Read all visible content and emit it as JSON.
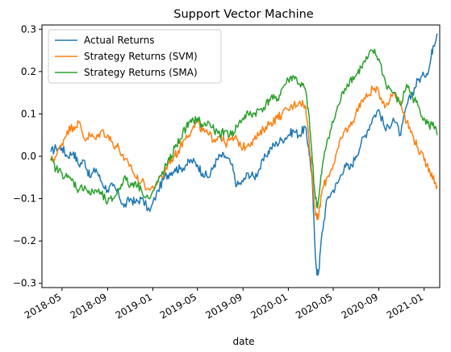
{
  "chart_data": {
    "type": "line",
    "title": "Support Vector Machine",
    "xlabel": "date",
    "ylabel": "",
    "xlim": [
      "2018-03-08",
      "2021-02-12"
    ],
    "ylim": [
      -0.31,
      0.31
    ],
    "x_ticks": [
      "2018-05",
      "2018-09",
      "2019-01",
      "2019-05",
      "2019-09",
      "2020-01",
      "2020-05",
      "2020-09",
      "2021-01"
    ],
    "y_ticks": [
      -0.3,
      -0.2,
      -0.1,
      0.0,
      0.1,
      0.2,
      0.3
    ],
    "y_tick_labels": [
      "−0.3",
      "−0.2",
      "−0.1",
      "0.0",
      "0.1",
      "0.2",
      "0.3"
    ],
    "legend_position": "upper-left",
    "grid": false,
    "series": [
      {
        "name": "Actual Returns",
        "color": "#1f77b4",
        "points": [
          [
            "2018-04-01",
            0.01
          ],
          [
            "2018-04-15",
            0.02
          ],
          [
            "2018-05-01",
            0.02
          ],
          [
            "2018-05-15",
            0.0
          ],
          [
            "2018-06-01",
            0.01
          ],
          [
            "2018-06-15",
            -0.02
          ],
          [
            "2018-07-01",
            -0.01
          ],
          [
            "2018-07-15",
            -0.05
          ],
          [
            "2018-08-01",
            -0.03
          ],
          [
            "2018-08-15",
            -0.06
          ],
          [
            "2018-09-01",
            -0.08
          ],
          [
            "2018-09-15",
            -0.07
          ],
          [
            "2018-10-01",
            -0.09
          ],
          [
            "2018-10-15",
            -0.12
          ],
          [
            "2018-11-01",
            -0.1
          ],
          [
            "2018-11-15",
            -0.11
          ],
          [
            "2018-12-01",
            -0.1
          ],
          [
            "2018-12-24",
            -0.13
          ],
          [
            "2019-01-15",
            -0.08
          ],
          [
            "2019-02-01",
            -0.05
          ],
          [
            "2019-02-15",
            -0.04
          ],
          [
            "2019-03-01",
            -0.03
          ],
          [
            "2019-03-15",
            -0.03
          ],
          [
            "2019-04-01",
            -0.02
          ],
          [
            "2019-04-15",
            -0.01
          ],
          [
            "2019-05-01",
            -0.02
          ],
          [
            "2019-05-15",
            -0.04
          ],
          [
            "2019-06-01",
            -0.05
          ],
          [
            "2019-06-15",
            -0.02
          ],
          [
            "2019-07-01",
            0.0
          ],
          [
            "2019-07-15",
            0.0
          ],
          [
            "2019-08-01",
            -0.02
          ],
          [
            "2019-08-15",
            -0.07
          ],
          [
            "2019-09-01",
            -0.06
          ],
          [
            "2019-09-15",
            -0.04
          ],
          [
            "2019-10-01",
            -0.05
          ],
          [
            "2019-10-15",
            -0.03
          ],
          [
            "2019-11-01",
            0.0
          ],
          [
            "2019-11-15",
            0.02
          ],
          [
            "2019-12-01",
            0.03
          ],
          [
            "2019-12-15",
            0.04
          ],
          [
            "2020-01-01",
            0.05
          ],
          [
            "2020-01-15",
            0.06
          ],
          [
            "2020-02-01",
            0.05
          ],
          [
            "2020-02-15",
            0.07
          ],
          [
            "2020-02-25",
            0.02
          ],
          [
            "2020-03-05",
            -0.05
          ],
          [
            "2020-03-12",
            -0.2
          ],
          [
            "2020-03-18",
            -0.28
          ],
          [
            "2020-03-23",
            -0.27
          ],
          [
            "2020-04-01",
            -0.18
          ],
          [
            "2020-04-15",
            -0.1
          ],
          [
            "2020-05-01",
            -0.08
          ],
          [
            "2020-05-15",
            -0.06
          ],
          [
            "2020-06-01",
            -0.02
          ],
          [
            "2020-06-15",
            -0.03
          ],
          [
            "2020-07-01",
            0.0
          ],
          [
            "2020-07-15",
            0.03
          ],
          [
            "2020-08-01",
            0.06
          ],
          [
            "2020-08-15",
            0.09
          ],
          [
            "2020-09-01",
            0.11
          ],
          [
            "2020-09-20",
            0.06
          ],
          [
            "2020-10-10",
            0.09
          ],
          [
            "2020-10-30",
            0.05
          ],
          [
            "2020-11-15",
            0.12
          ],
          [
            "2020-12-01",
            0.15
          ],
          [
            "2020-12-15",
            0.18
          ],
          [
            "2021-01-01",
            0.19
          ],
          [
            "2021-01-15",
            0.21
          ],
          [
            "2021-01-25",
            0.26
          ],
          [
            "2021-02-05",
            0.29
          ]
        ]
      },
      {
        "name": "Strategy Returns (SVM)",
        "color": "#ff7f0e",
        "points": [
          [
            "2018-04-01",
            -0.01
          ],
          [
            "2018-04-15",
            0.0
          ],
          [
            "2018-05-01",
            0.03
          ],
          [
            "2018-05-15",
            0.06
          ],
          [
            "2018-06-01",
            0.07
          ],
          [
            "2018-06-15",
            0.08
          ],
          [
            "2018-07-01",
            0.04
          ],
          [
            "2018-07-15",
            0.05
          ],
          [
            "2018-08-01",
            0.04
          ],
          [
            "2018-08-15",
            0.06
          ],
          [
            "2018-09-01",
            0.05
          ],
          [
            "2018-09-15",
            0.03
          ],
          [
            "2018-10-01",
            0.02
          ],
          [
            "2018-10-15",
            -0.01
          ],
          [
            "2018-11-01",
            -0.02
          ],
          [
            "2018-11-15",
            -0.05
          ],
          [
            "2018-12-01",
            -0.06
          ],
          [
            "2018-12-24",
            -0.08
          ],
          [
            "2019-01-15",
            -0.06
          ],
          [
            "2019-02-01",
            -0.04
          ],
          [
            "2019-02-15",
            -0.01
          ],
          [
            "2019-03-01",
            0.0
          ],
          [
            "2019-03-15",
            0.02
          ],
          [
            "2019-04-01",
            0.05
          ],
          [
            "2019-04-15",
            0.06
          ],
          [
            "2019-05-01",
            0.08
          ],
          [
            "2019-05-15",
            0.06
          ],
          [
            "2019-06-01",
            0.05
          ],
          [
            "2019-06-15",
            0.04
          ],
          [
            "2019-07-01",
            0.05
          ],
          [
            "2019-07-15",
            0.03
          ],
          [
            "2019-08-01",
            0.04
          ],
          [
            "2019-08-15",
            0.04
          ],
          [
            "2019-09-01",
            0.02
          ],
          [
            "2019-09-15",
            0.03
          ],
          [
            "2019-10-01",
            0.04
          ],
          [
            "2019-10-15",
            0.05
          ],
          [
            "2019-11-01",
            0.07
          ],
          [
            "2019-11-15",
            0.08
          ],
          [
            "2019-12-01",
            0.09
          ],
          [
            "2019-12-15",
            0.1
          ],
          [
            "2020-01-01",
            0.11
          ],
          [
            "2020-01-15",
            0.12
          ],
          [
            "2020-02-01",
            0.13
          ],
          [
            "2020-02-15",
            0.12
          ],
          [
            "2020-02-25",
            0.05
          ],
          [
            "2020-03-05",
            -0.04
          ],
          [
            "2020-03-12",
            -0.12
          ],
          [
            "2020-03-18",
            -0.15
          ],
          [
            "2020-03-23",
            -0.14
          ],
          [
            "2020-04-01",
            -0.08
          ],
          [
            "2020-04-15",
            -0.05
          ],
          [
            "2020-05-01",
            -0.02
          ],
          [
            "2020-05-15",
            0.02
          ],
          [
            "2020-06-01",
            0.06
          ],
          [
            "2020-06-15",
            0.07
          ],
          [
            "2020-07-01",
            0.1
          ],
          [
            "2020-07-15",
            0.13
          ],
          [
            "2020-08-01",
            0.14
          ],
          [
            "2020-08-15",
            0.16
          ],
          [
            "2020-09-01",
            0.15
          ],
          [
            "2020-09-20",
            0.12
          ],
          [
            "2020-10-10",
            0.15
          ],
          [
            "2020-10-30",
            0.13
          ],
          [
            "2020-11-15",
            0.08
          ],
          [
            "2020-12-01",
            0.05
          ],
          [
            "2020-12-15",
            0.02
          ],
          [
            "2021-01-01",
            -0.01
          ],
          [
            "2021-01-15",
            -0.03
          ],
          [
            "2021-01-25",
            -0.05
          ],
          [
            "2021-02-05",
            -0.07
          ]
        ]
      },
      {
        "name": "Strategy Returns (SMA)",
        "color": "#2ca02c",
        "points": [
          [
            "2018-04-01",
            -0.01
          ],
          [
            "2018-04-15",
            -0.03
          ],
          [
            "2018-05-01",
            -0.04
          ],
          [
            "2018-05-15",
            -0.05
          ],
          [
            "2018-06-01",
            -0.06
          ],
          [
            "2018-06-15",
            -0.08
          ],
          [
            "2018-07-01",
            -0.07
          ],
          [
            "2018-07-15",
            -0.09
          ],
          [
            "2018-08-01",
            -0.08
          ],
          [
            "2018-08-15",
            -0.09
          ],
          [
            "2018-09-01",
            -0.11
          ],
          [
            "2018-09-15",
            -0.1
          ],
          [
            "2018-10-01",
            -0.08
          ],
          [
            "2018-10-15",
            -0.05
          ],
          [
            "2018-11-01",
            -0.07
          ],
          [
            "2018-11-15",
            -0.06
          ],
          [
            "2018-12-01",
            -0.08
          ],
          [
            "2018-12-24",
            -0.1
          ],
          [
            "2019-01-15",
            -0.06
          ],
          [
            "2019-02-01",
            -0.03
          ],
          [
            "2019-02-15",
            -0.01
          ],
          [
            "2019-03-01",
            0.02
          ],
          [
            "2019-03-15",
            0.04
          ],
          [
            "2019-04-01",
            0.07
          ],
          [
            "2019-04-15",
            0.08
          ],
          [
            "2019-05-01",
            0.09
          ],
          [
            "2019-05-15",
            0.07
          ],
          [
            "2019-06-01",
            0.08
          ],
          [
            "2019-06-15",
            0.06
          ],
          [
            "2019-07-01",
            0.05
          ],
          [
            "2019-07-15",
            0.06
          ],
          [
            "2019-08-01",
            0.05
          ],
          [
            "2019-08-15",
            0.07
          ],
          [
            "2019-09-01",
            0.09
          ],
          [
            "2019-09-15",
            0.1
          ],
          [
            "2019-10-01",
            0.1
          ],
          [
            "2019-10-15",
            0.11
          ],
          [
            "2019-11-01",
            0.12
          ],
          [
            "2019-11-15",
            0.14
          ],
          [
            "2019-12-01",
            0.13
          ],
          [
            "2019-12-15",
            0.16
          ],
          [
            "2020-01-01",
            0.18
          ],
          [
            "2020-01-15",
            0.19
          ],
          [
            "2020-02-01",
            0.17
          ],
          [
            "2020-02-15",
            0.16
          ],
          [
            "2020-02-25",
            0.1
          ],
          [
            "2020-03-05",
            0.0
          ],
          [
            "2020-03-12",
            -0.08
          ],
          [
            "2020-03-18",
            -0.12
          ],
          [
            "2020-03-23",
            -0.1
          ],
          [
            "2020-04-01",
            -0.03
          ],
          [
            "2020-04-15",
            0.04
          ],
          [
            "2020-05-01",
            0.08
          ],
          [
            "2020-05-15",
            0.12
          ],
          [
            "2020-06-01",
            0.16
          ],
          [
            "2020-06-15",
            0.18
          ],
          [
            "2020-07-01",
            0.19
          ],
          [
            "2020-07-15",
            0.21
          ],
          [
            "2020-08-01",
            0.23
          ],
          [
            "2020-08-15",
            0.25
          ],
          [
            "2020-09-01",
            0.23
          ],
          [
            "2020-09-20",
            0.17
          ],
          [
            "2020-10-10",
            0.15
          ],
          [
            "2020-10-30",
            0.12
          ],
          [
            "2020-11-15",
            0.17
          ],
          [
            "2020-12-01",
            0.14
          ],
          [
            "2020-12-15",
            0.12
          ],
          [
            "2021-01-01",
            0.09
          ],
          [
            "2021-01-15",
            0.07
          ],
          [
            "2021-01-25",
            0.08
          ],
          [
            "2021-02-05",
            0.05
          ]
        ]
      }
    ]
  }
}
